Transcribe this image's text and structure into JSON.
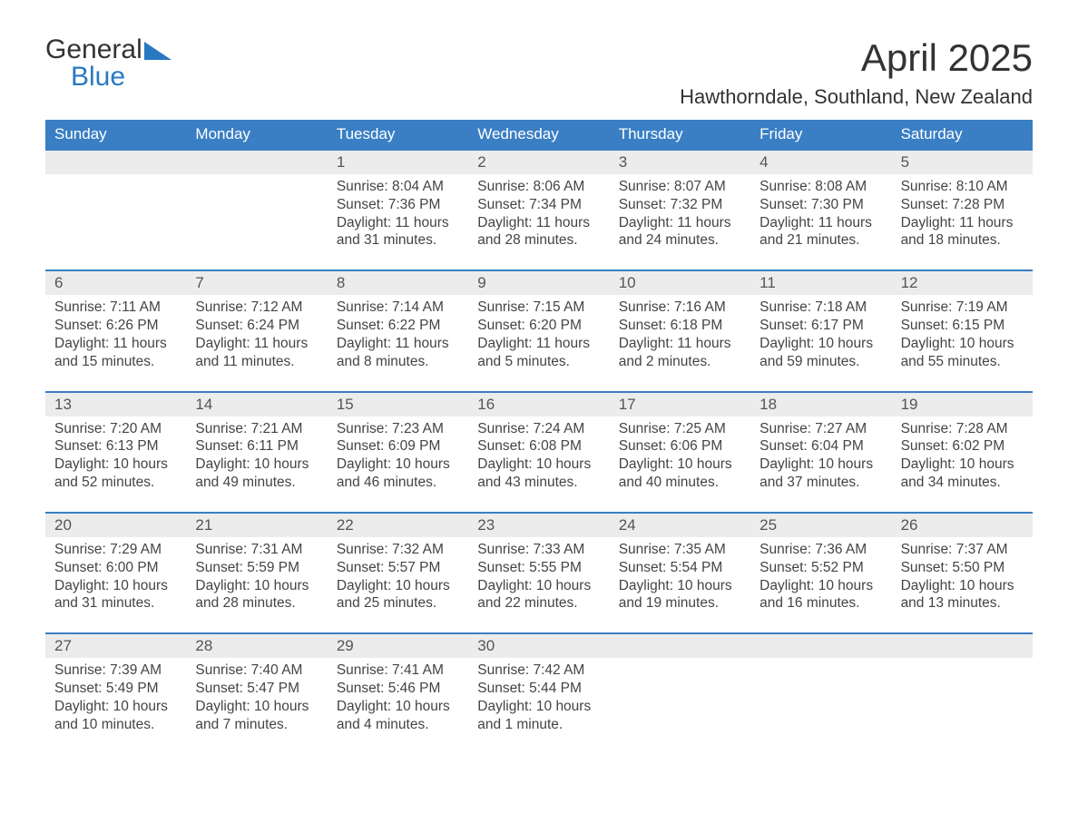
{
  "logo": {
    "text1": "General",
    "text2": "Blue",
    "color1": "#333333",
    "color2": "#2a78c2"
  },
  "title": "April 2025",
  "location": "Hawthorndale, Southland, New Zealand",
  "colors": {
    "header_bg": "#3a7fc4",
    "header_text": "#ffffff",
    "daynum_bg": "#ececec",
    "week_border": "#3a7fc4",
    "body_text": "#444444"
  },
  "dow": [
    "Sunday",
    "Monday",
    "Tuesday",
    "Wednesday",
    "Thursday",
    "Friday",
    "Saturday"
  ],
  "weeks": [
    [
      null,
      null,
      {
        "n": "1",
        "sr": "8:04 AM",
        "ss": "7:36 PM",
        "dl": "11 hours and 31 minutes."
      },
      {
        "n": "2",
        "sr": "8:06 AM",
        "ss": "7:34 PM",
        "dl": "11 hours and 28 minutes."
      },
      {
        "n": "3",
        "sr": "8:07 AM",
        "ss": "7:32 PM",
        "dl": "11 hours and 24 minutes."
      },
      {
        "n": "4",
        "sr": "8:08 AM",
        "ss": "7:30 PM",
        "dl": "11 hours and 21 minutes."
      },
      {
        "n": "5",
        "sr": "8:10 AM",
        "ss": "7:28 PM",
        "dl": "11 hours and 18 minutes."
      }
    ],
    [
      {
        "n": "6",
        "sr": "7:11 AM",
        "ss": "6:26 PM",
        "dl": "11 hours and 15 minutes."
      },
      {
        "n": "7",
        "sr": "7:12 AM",
        "ss": "6:24 PM",
        "dl": "11 hours and 11 minutes."
      },
      {
        "n": "8",
        "sr": "7:14 AM",
        "ss": "6:22 PM",
        "dl": "11 hours and 8 minutes."
      },
      {
        "n": "9",
        "sr": "7:15 AM",
        "ss": "6:20 PM",
        "dl": "11 hours and 5 minutes."
      },
      {
        "n": "10",
        "sr": "7:16 AM",
        "ss": "6:18 PM",
        "dl": "11 hours and 2 minutes."
      },
      {
        "n": "11",
        "sr": "7:18 AM",
        "ss": "6:17 PM",
        "dl": "10 hours and 59 minutes."
      },
      {
        "n": "12",
        "sr": "7:19 AM",
        "ss": "6:15 PM",
        "dl": "10 hours and 55 minutes."
      }
    ],
    [
      {
        "n": "13",
        "sr": "7:20 AM",
        "ss": "6:13 PM",
        "dl": "10 hours and 52 minutes."
      },
      {
        "n": "14",
        "sr": "7:21 AM",
        "ss": "6:11 PM",
        "dl": "10 hours and 49 minutes."
      },
      {
        "n": "15",
        "sr": "7:23 AM",
        "ss": "6:09 PM",
        "dl": "10 hours and 46 minutes."
      },
      {
        "n": "16",
        "sr": "7:24 AM",
        "ss": "6:08 PM",
        "dl": "10 hours and 43 minutes."
      },
      {
        "n": "17",
        "sr": "7:25 AM",
        "ss": "6:06 PM",
        "dl": "10 hours and 40 minutes."
      },
      {
        "n": "18",
        "sr": "7:27 AM",
        "ss": "6:04 PM",
        "dl": "10 hours and 37 minutes."
      },
      {
        "n": "19",
        "sr": "7:28 AM",
        "ss": "6:02 PM",
        "dl": "10 hours and 34 minutes."
      }
    ],
    [
      {
        "n": "20",
        "sr": "7:29 AM",
        "ss": "6:00 PM",
        "dl": "10 hours and 31 minutes."
      },
      {
        "n": "21",
        "sr": "7:31 AM",
        "ss": "5:59 PM",
        "dl": "10 hours and 28 minutes."
      },
      {
        "n": "22",
        "sr": "7:32 AM",
        "ss": "5:57 PM",
        "dl": "10 hours and 25 minutes."
      },
      {
        "n": "23",
        "sr": "7:33 AM",
        "ss": "5:55 PM",
        "dl": "10 hours and 22 minutes."
      },
      {
        "n": "24",
        "sr": "7:35 AM",
        "ss": "5:54 PM",
        "dl": "10 hours and 19 minutes."
      },
      {
        "n": "25",
        "sr": "7:36 AM",
        "ss": "5:52 PM",
        "dl": "10 hours and 16 minutes."
      },
      {
        "n": "26",
        "sr": "7:37 AM",
        "ss": "5:50 PM",
        "dl": "10 hours and 13 minutes."
      }
    ],
    [
      {
        "n": "27",
        "sr": "7:39 AM",
        "ss": "5:49 PM",
        "dl": "10 hours and 10 minutes."
      },
      {
        "n": "28",
        "sr": "7:40 AM",
        "ss": "5:47 PM",
        "dl": "10 hours and 7 minutes."
      },
      {
        "n": "29",
        "sr": "7:41 AM",
        "ss": "5:46 PM",
        "dl": "10 hours and 4 minutes."
      },
      {
        "n": "30",
        "sr": "7:42 AM",
        "ss": "5:44 PM",
        "dl": "10 hours and 1 minute."
      },
      null,
      null,
      null
    ]
  ],
  "labels": {
    "sunrise": "Sunrise: ",
    "sunset": "Sunset: ",
    "daylight": "Daylight: "
  }
}
